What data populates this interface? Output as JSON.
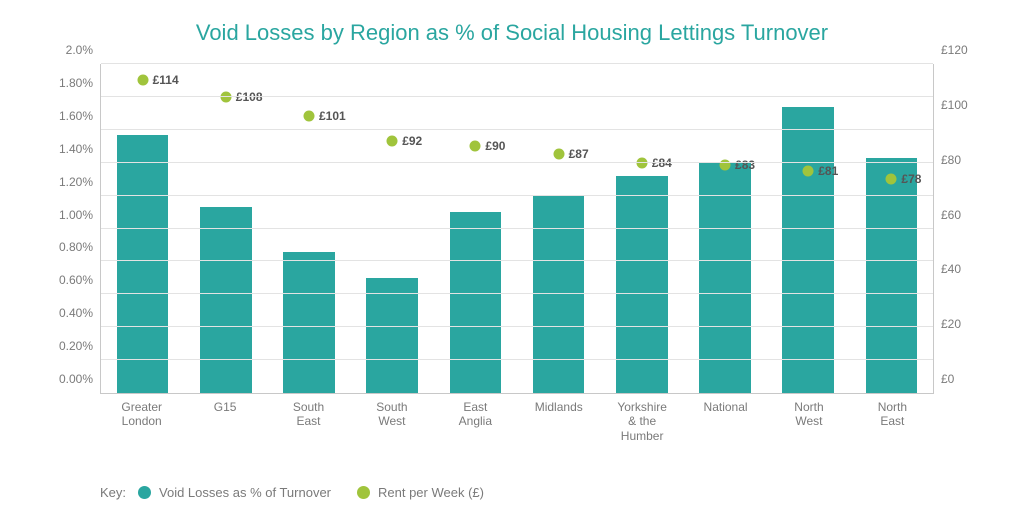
{
  "chart": {
    "type": "bar+scatter",
    "title": "Void Losses by Region as % of Social Housing Lettings Turnover",
    "title_color": "#2aa6a0",
    "title_fontsize": 22,
    "background_color": "#ffffff",
    "grid_color": "#e3e3e3",
    "axis_color": "#c8c8c8",
    "tick_color": "#7a7a7a",
    "tick_fontsize": 12,
    "categories": [
      "Greater London",
      "G15",
      "South East",
      "South West",
      "East Anglia",
      "Midlands",
      "Yorkshire & the Humber",
      "National",
      "North West",
      "North East"
    ],
    "bar_series": {
      "name": "Void Losses as % of Turnover",
      "color": "#2aa6a0",
      "values_pct": [
        1.57,
        1.13,
        0.86,
        0.7,
        1.1,
        1.2,
        1.32,
        1.4,
        1.74,
        1.43
      ],
      "bar_width": 0.62
    },
    "dot_series": {
      "name": "Rent per Week (£)",
      "color": "#a0c43c",
      "values_gbp": [
        114,
        108,
        101,
        92,
        90,
        87,
        84,
        83,
        81,
        78
      ],
      "dot_label_prefix": "£",
      "dot_label_color": "#555555",
      "dot_size": 11
    },
    "y_left": {
      "min": 0,
      "max": 2.0,
      "step": 0.2,
      "ticks": [
        "0.00%",
        "0.20%",
        "0.40%",
        "0.60%",
        "0.80%",
        "1.00%",
        "1.20%",
        "1.40%",
        "1.60%",
        "1.80%",
        "2.0%"
      ]
    },
    "y_right": {
      "min": 0,
      "max": 120,
      "step": 20,
      "ticks": [
        "£0",
        "£20",
        "£40",
        "£60",
        "£80",
        "£100",
        "£120"
      ]
    },
    "legend": {
      "key_label": "Key:",
      "items": [
        {
          "label": "Void Losses as % of Turnover",
          "swatch": "#2aa6a0",
          "shape": "circle"
        },
        {
          "label": "Rent per Week (£)",
          "swatch": "#a0c43c",
          "shape": "circle"
        }
      ]
    }
  }
}
